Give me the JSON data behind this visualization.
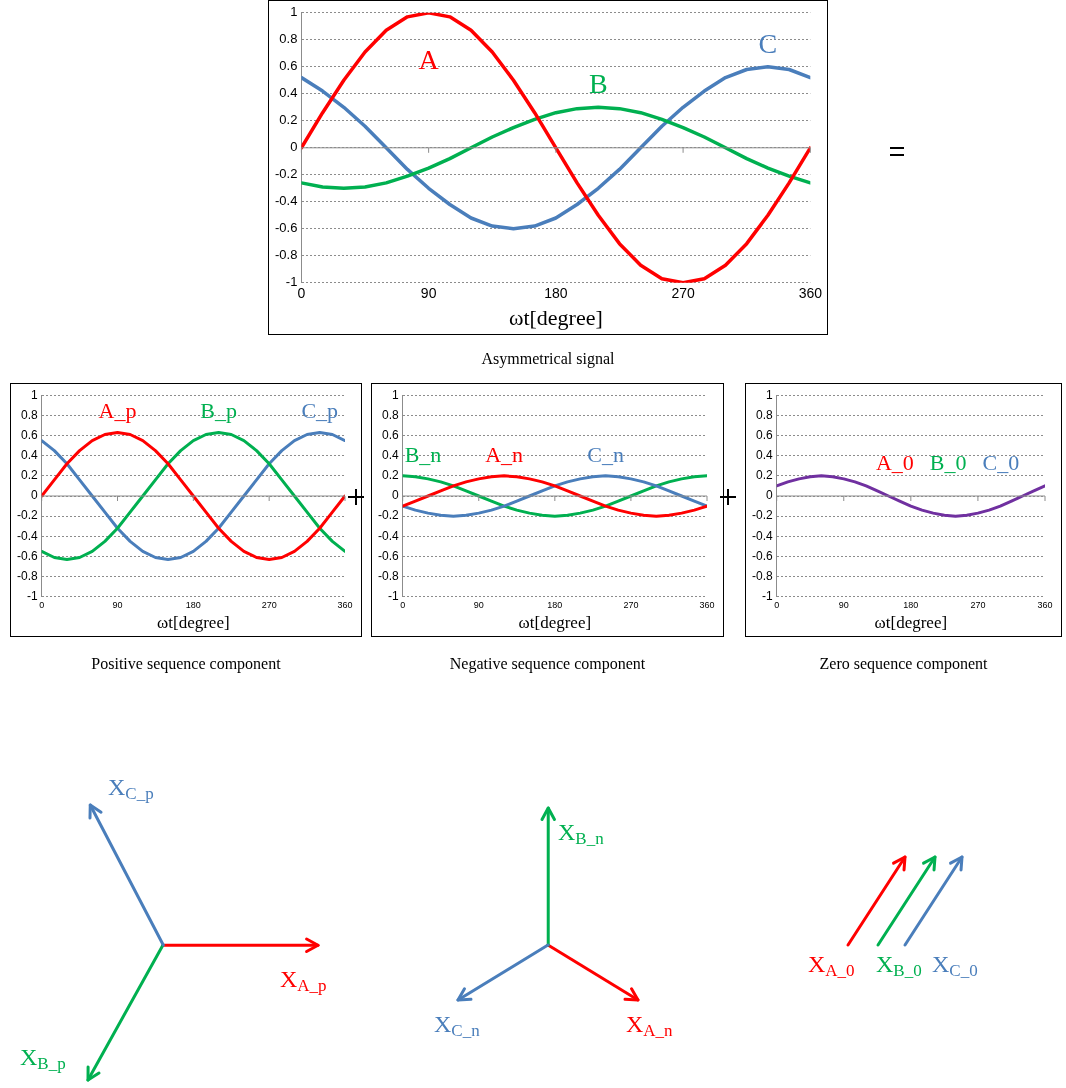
{
  "chart_data": [
    {
      "type": "line",
      "title": "Asymmetrical signal",
      "xlabel": "ωt[degree]",
      "x": [
        0,
        15,
        30,
        45,
        60,
        75,
        90,
        105,
        120,
        135,
        150,
        165,
        180,
        195,
        210,
        225,
        240,
        255,
        270,
        285,
        300,
        315,
        330,
        345,
        360
      ],
      "xlim": [
        0,
        360
      ],
      "xticks": [
        0,
        90,
        180,
        270,
        360
      ],
      "ylim": [
        -1,
        1
      ],
      "yticks": [
        -1,
        -0.8,
        -0.6,
        -0.4,
        -0.2,
        0,
        0.2,
        0.4,
        0.6,
        0.8,
        1
      ],
      "grid": "y",
      "legend": false,
      "series": [
        {
          "name": "A",
          "color": "#ff0000",
          "values": [
            0,
            0.26,
            0.5,
            0.71,
            0.87,
            0.97,
            1,
            0.97,
            0.87,
            0.71,
            0.5,
            0.26,
            0,
            -0.26,
            -0.5,
            -0.71,
            -0.87,
            -0.97,
            -1,
            -0.97,
            -0.87,
            -0.71,
            -0.5,
            -0.26,
            0
          ]
        },
        {
          "name": "B",
          "color": "#00b050",
          "values": [
            -0.26,
            -0.29,
            -0.3,
            -0.29,
            -0.26,
            -0.21,
            -0.15,
            -0.08,
            0,
            0.08,
            0.15,
            0.21,
            0.26,
            0.29,
            0.3,
            0.29,
            0.26,
            0.21,
            0.15,
            0.08,
            0,
            -0.08,
            -0.15,
            -0.21,
            -0.26
          ]
        },
        {
          "name": "C",
          "color": "#4a7ebb",
          "values": [
            0.52,
            0.42,
            0.3,
            0.16,
            0,
            -0.16,
            -0.3,
            -0.42,
            -0.52,
            -0.58,
            -0.6,
            -0.58,
            -0.52,
            -0.42,
            -0.3,
            -0.16,
            0,
            0.16,
            0.3,
            0.42,
            0.52,
            0.58,
            0.6,
            0.58,
            0.52
          ]
        }
      ]
    },
    {
      "type": "line",
      "title": "Positive sequence component",
      "xlabel": "ωt[degree]",
      "x": [
        0,
        15,
        30,
        45,
        60,
        75,
        90,
        105,
        120,
        135,
        150,
        165,
        180,
        195,
        210,
        225,
        240,
        255,
        270,
        285,
        300,
        315,
        330,
        345,
        360
      ],
      "xlim": [
        0,
        360
      ],
      "xticks": [
        0,
        90,
        180,
        270,
        360
      ],
      "ylim": [
        -1,
        1
      ],
      "yticks": [
        -1,
        -0.8,
        -0.6,
        -0.4,
        -0.2,
        0,
        0.2,
        0.4,
        0.6,
        0.8,
        1
      ],
      "grid": "y",
      "legend": false,
      "series": [
        {
          "name": "A_p",
          "color": "#ff0000",
          "values": [
            0,
            0.16,
            0.32,
            0.45,
            0.55,
            0.61,
            0.63,
            0.61,
            0.55,
            0.45,
            0.32,
            0.16,
            0,
            -0.16,
            -0.32,
            -0.45,
            -0.55,
            -0.61,
            -0.63,
            -0.61,
            -0.55,
            -0.45,
            -0.32,
            -0.16,
            0
          ]
        },
        {
          "name": "B_p",
          "color": "#00b050",
          "values": [
            -0.55,
            -0.61,
            -0.63,
            -0.61,
            -0.55,
            -0.45,
            -0.32,
            -0.16,
            0,
            0.16,
            0.32,
            0.45,
            0.55,
            0.61,
            0.63,
            0.61,
            0.55,
            0.45,
            0.32,
            0.16,
            0,
            -0.16,
            -0.32,
            -0.45,
            -0.55
          ]
        },
        {
          "name": "C_p",
          "color": "#4a7ebb",
          "values": [
            0.55,
            0.45,
            0.32,
            0.16,
            0,
            -0.16,
            -0.32,
            -0.45,
            -0.55,
            -0.61,
            -0.63,
            -0.61,
            -0.55,
            -0.45,
            -0.32,
            -0.16,
            0,
            0.16,
            0.32,
            0.45,
            0.55,
            0.61,
            0.63,
            0.61,
            0.55
          ]
        }
      ]
    },
    {
      "type": "line",
      "title": "Negative sequence component",
      "xlabel": "ωt[degree]",
      "x": [
        0,
        15,
        30,
        45,
        60,
        75,
        90,
        105,
        120,
        135,
        150,
        165,
        180,
        195,
        210,
        225,
        240,
        255,
        270,
        285,
        300,
        315,
        330,
        345,
        360
      ],
      "xlim": [
        0,
        360
      ],
      "xticks": [
        0,
        90,
        180,
        270,
        360
      ],
      "ylim": [
        -1,
        1
      ],
      "yticks": [
        -1,
        -0.8,
        -0.6,
        -0.4,
        -0.2,
        0,
        0.2,
        0.4,
        0.6,
        0.8,
        1
      ],
      "grid": "y",
      "legend": false,
      "series": [
        {
          "name": "A_n",
          "color": "#ff0000",
          "values": [
            -0.1,
            -0.05,
            0,
            0.05,
            0.1,
            0.14,
            0.17,
            0.19,
            0.2,
            0.19,
            0.17,
            0.14,
            0.1,
            0.05,
            0,
            -0.05,
            -0.1,
            -0.14,
            -0.17,
            -0.19,
            -0.2,
            -0.19,
            -0.17,
            -0.14,
            -0.1
          ]
        },
        {
          "name": "C_n",
          "color": "#4a7ebb",
          "values": [
            -0.1,
            -0.14,
            -0.17,
            -0.19,
            -0.2,
            -0.19,
            -0.17,
            -0.14,
            -0.1,
            -0.05,
            0,
            0.05,
            0.1,
            0.14,
            0.17,
            0.19,
            0.2,
            0.19,
            0.17,
            0.14,
            0.1,
            0.05,
            0,
            -0.05,
            -0.1
          ]
        },
        {
          "name": "B_n",
          "color": "#00b050",
          "values": [
            0.2,
            0.19,
            0.17,
            0.14,
            0.1,
            0.05,
            0,
            -0.05,
            -0.1,
            -0.14,
            -0.17,
            -0.19,
            -0.2,
            -0.19,
            -0.17,
            -0.14,
            -0.1,
            -0.05,
            0,
            0.05,
            0.1,
            0.14,
            0.17,
            0.19,
            0.2
          ]
        }
      ]
    },
    {
      "type": "line",
      "title": "Zero sequence component",
      "xlabel": "ωt[degree]",
      "x": [
        0,
        15,
        30,
        45,
        60,
        75,
        90,
        105,
        120,
        135,
        150,
        165,
        180,
        195,
        210,
        225,
        240,
        255,
        270,
        285,
        300,
        315,
        330,
        345,
        360
      ],
      "xlim": [
        0,
        360
      ],
      "xticks": [
        0,
        90,
        180,
        270,
        360
      ],
      "ylim": [
        -1,
        1
      ],
      "yticks": [
        -1,
        -0.8,
        -0.6,
        -0.4,
        -0.2,
        0,
        0.2,
        0.4,
        0.6,
        0.8,
        1
      ],
      "grid": "y",
      "legend": false,
      "annotations": [
        "A_0",
        "B_0",
        "C_0"
      ],
      "series": [
        {
          "color": "#7030a0",
          "values": [
            0.1,
            0.14,
            0.17,
            0.19,
            0.2,
            0.19,
            0.17,
            0.14,
            0.1,
            0.05,
            0,
            -0.05,
            -0.1,
            -0.14,
            -0.17,
            -0.19,
            -0.2,
            -0.19,
            -0.17,
            -0.14,
            -0.1,
            -0.05,
            0,
            0.05,
            0.1
          ]
        }
      ]
    },
    {
      "type": "other",
      "annotations": [
        "X$_{A_p}$",
        "X$_{B_p}$",
        "X$_{C_p}$"
      ]
    },
    {
      "type": "other",
      "annotations": [
        "X$_{A_n}$",
        "X$_{B_n}$",
        "X$_{C_n}$"
      ]
    },
    {
      "type": "other",
      "annotations": [
        "X$_{A_0}$",
        "X$_{B_0}$",
        "X$_{C_0}$"
      ]
    }
  ]
}
